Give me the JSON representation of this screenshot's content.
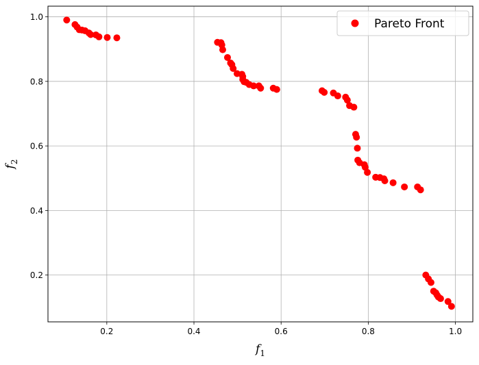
{
  "chart_data": {
    "type": "scatter",
    "title": "",
    "xlabel": "f",
    "xlabel_sub": "1",
    "ylabel": "f",
    "ylabel_sub": "2",
    "xlim": [
      0.065,
      1.04
    ],
    "ylim": [
      0.055,
      1.033
    ],
    "x_ticks": [
      0.2,
      0.4,
      0.6,
      0.8,
      1.0
    ],
    "x_tick_labels": [
      "0.2",
      "0.4",
      "0.6",
      "0.8",
      "1.0"
    ],
    "y_ticks": [
      0.2,
      0.4,
      0.6,
      0.8,
      1.0
    ],
    "y_tick_labels": [
      "0.2",
      "0.4",
      "0.6",
      "0.8",
      "1.0"
    ],
    "grid": true,
    "legend_position": "top-right",
    "series": [
      {
        "name": "Pareto Front",
        "color": "#ff0000",
        "points": [
          [
            0.108,
            0.99
          ],
          [
            0.127,
            0.976
          ],
          [
            0.132,
            0.968
          ],
          [
            0.137,
            0.96
          ],
          [
            0.143,
            0.959
          ],
          [
            0.15,
            0.957
          ],
          [
            0.159,
            0.95
          ],
          [
            0.163,
            0.945
          ],
          [
            0.175,
            0.944
          ],
          [
            0.182,
            0.938
          ],
          [
            0.201,
            0.936
          ],
          [
            0.223,
            0.935
          ],
          [
            0.454,
            0.921
          ],
          [
            0.462,
            0.92
          ],
          [
            0.464,
            0.913
          ],
          [
            0.466,
            0.898
          ],
          [
            0.477,
            0.874
          ],
          [
            0.484,
            0.857
          ],
          [
            0.487,
            0.852
          ],
          [
            0.49,
            0.84
          ],
          [
            0.499,
            0.824
          ],
          [
            0.51,
            0.822
          ],
          [
            0.512,
            0.815
          ],
          [
            0.512,
            0.806
          ],
          [
            0.515,
            0.799
          ],
          [
            0.52,
            0.797
          ],
          [
            0.527,
            0.79
          ],
          [
            0.537,
            0.786
          ],
          [
            0.549,
            0.786
          ],
          [
            0.553,
            0.779
          ],
          [
            0.582,
            0.779
          ],
          [
            0.59,
            0.775
          ],
          [
            0.694,
            0.771
          ],
          [
            0.699,
            0.766
          ],
          [
            0.72,
            0.764
          ],
          [
            0.73,
            0.755
          ],
          [
            0.748,
            0.751
          ],
          [
            0.752,
            0.742
          ],
          [
            0.757,
            0.725
          ],
          [
            0.767,
            0.72
          ],
          [
            0.771,
            0.636
          ],
          [
            0.773,
            0.627
          ],
          [
            0.775,
            0.593
          ],
          [
            0.776,
            0.556
          ],
          [
            0.78,
            0.548
          ],
          [
            0.791,
            0.542
          ],
          [
            0.793,
            0.534
          ],
          [
            0.798,
            0.518
          ],
          [
            0.817,
            0.503
          ],
          [
            0.827,
            0.502
          ],
          [
            0.836,
            0.498
          ],
          [
            0.838,
            0.492
          ],
          [
            0.857,
            0.486
          ],
          [
            0.883,
            0.473
          ],
          [
            0.913,
            0.473
          ],
          [
            0.92,
            0.464
          ],
          [
            0.932,
            0.2
          ],
          [
            0.938,
            0.188
          ],
          [
            0.944,
            0.177
          ],
          [
            0.95,
            0.15
          ],
          [
            0.955,
            0.145
          ],
          [
            0.958,
            0.138
          ],
          [
            0.961,
            0.132
          ],
          [
            0.966,
            0.127
          ],
          [
            0.983,
            0.118
          ],
          [
            0.991,
            0.103
          ]
        ]
      }
    ]
  }
}
